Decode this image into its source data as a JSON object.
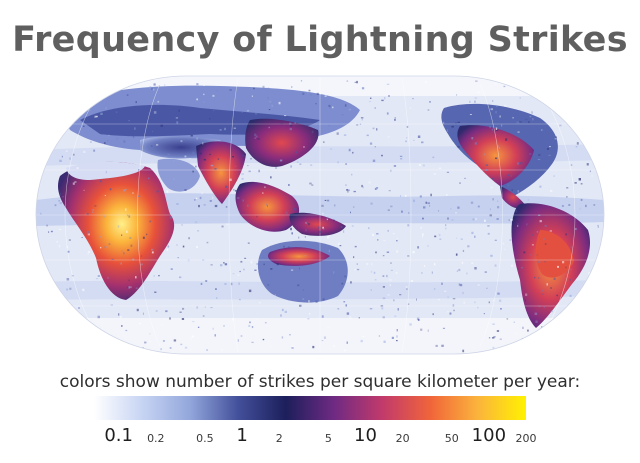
{
  "title": "Frequency of Lightning Strikes",
  "legend": {
    "caption": "colors show number of strikes per square kilometer per year:",
    "ticks": [
      {
        "label": "0.1",
        "major": true
      },
      {
        "label": "0.2",
        "major": false
      },
      {
        "label": "0.5",
        "major": false
      },
      {
        "label": "1",
        "major": true
      },
      {
        "label": "2",
        "major": false
      },
      {
        "label": "5",
        "major": false
      },
      {
        "label": "10",
        "major": true
      },
      {
        "label": "20",
        "major": false
      },
      {
        "label": "50",
        "major": false
      },
      {
        "label": "100",
        "major": true
      },
      {
        "label": "200",
        "major": false
      }
    ],
    "colors": [
      "#ffffff",
      "#c7d4f3",
      "#93a7dc",
      "#43509b",
      "#1c1f5b",
      "#6f2a83",
      "#c13a6b",
      "#f0643a",
      "#fbb43c",
      "#fff200"
    ]
  },
  "map": {
    "projection": "Robinson (Pacific-centered)",
    "background_color": "#e2e8f6"
  }
}
